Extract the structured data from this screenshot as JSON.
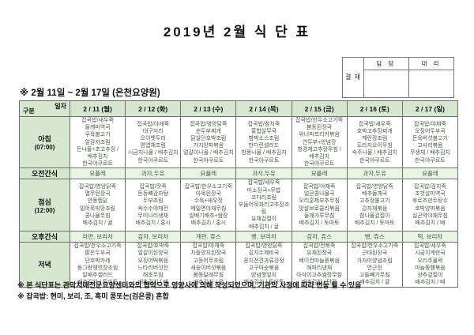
{
  "title": "2019년 2월 식 단 표",
  "approval": {
    "stamp_label": "결 재",
    "col1": "담 당",
    "col2": "대 리"
  },
  "subtitle": "※  2월 11일  ~  2월 17일  (은천요양원)",
  "table": {
    "corner": {
      "top_right": "일자",
      "bottom_left": "구분"
    },
    "days": [
      "2 / 11 (월)",
      "2 / 12 (화)",
      "2 / 13 (수)",
      "2 / 14 (목)",
      "2 / 15 (금)",
      "2 / 16 (토)",
      "2 / 17 (일)"
    ],
    "rows": [
      {
        "label": "아침",
        "time": "(07:00)",
        "cells": [
          [
            "잡곡밥/새우죽",
            "들깨미역국",
            "우육불고기",
            "알감자조림",
            "돈나물+초고추장 /",
            "배추김치",
            "한국야쿠르트"
          ],
          [
            "잡곡밥/야채죽",
            "대구지리",
            "오이뱃두리",
            "명엽채조림",
            "시금치나물 / 배추김치",
            "한국야쿠르트"
          ],
          [
            "잡곡밥/영양닭죽",
            "순두부찌개",
            "닭살단호박조림",
            "가지양파볶음",
            "얼갈이나물 / 배추김치",
            "한국야쿠르트"
          ],
          [
            "잡곡밥/참치죽",
            "홍합살무국",
            "함박소스조림",
            "만다린샐러드",
            "방풍나물 / 배추김치",
            "한국야쿠르트"
          ],
          [
            "잡곡밥/한우소고기죽",
            "봄동된장국",
            "위너파프리카볶음",
            "연두부+양념장",
            "청경채고추장무침 /",
            "배추김치",
            "한국야쿠르트"
          ],
          [
            "잡곡밥/새우죽",
            "호박고추장찌개",
            "계란장조림",
            "도라지오이무침",
            "숙주나물 / 배추김치",
            "한국야쿠르트"
          ],
          [
            "잡곡밥/야채죽",
            "오징어두부국",
            "돈육버섯불고기",
            "고사리볶음",
            "무생채 / 배추김치",
            "한국야쿠르트"
          ]
        ]
      },
      {
        "label": "오전간식",
        "time": "",
        "cells": [
          [
            "요플레"
          ],
          [
            "과자,두유"
          ],
          [
            "요플레"
          ],
          [
            "과자,두유"
          ],
          [
            "요플레"
          ],
          [
            "과자,두유"
          ],
          [
            "요플레"
          ]
        ]
      },
      {
        "label": "점심",
        "time": "(12:00)",
        "cells": [
          [
            "잡곡밥/영양닭죽",
            "열무된장국",
            "안동찜닭",
            "밀어묵피망조림",
            "콩나물무침",
            "배추김치 / 귤"
          ],
          [
            "잡곡밥/잣죽",
            "돈등뼈감자탕",
            "두부조림",
            "옥수수야채전",
            "무미나리생채",
            "배추김치 / 홍시"
          ],
          [
            "잡곡밥/한우소고기죽",
            "아욱된장국",
            "수육+새우젓",
            "메밀면야채무침",
            "알배기배추+쌈장",
            "배추김치 / 홍시"
          ],
          [
            "잡곡밥/새우죽",
            "미소장국+무밥",
            "코다리조림",
            "부들어묵꽈리고추장조림",
            "유채겉절이",
            "배추김치 / 귤"
          ],
          [
            "잡곡밥/야채죽",
            "얼큰콩나물국",
            "오리훈제부추무침",
            "맛살브로콜리볶음",
            "들깨가루무침",
            "배추김치 / 토마토"
          ],
          [
            "잡곡밥/영양닭죽",
            "배추들깨국",
            "고추장불고기",
            "감자채볶음",
            "참나물겉절이",
            "배추김치 / 토마토"
          ],
          [
            "잡곡밥/김치죽",
            "조갯살미역국",
            "후로츠만두탕수",
            "호박양파볶음",
            "실곤약야채무침",
            "배추김치 / 배"
          ]
        ]
      },
      {
        "label": "오후간식",
        "time": "",
        "cells": [
          [
            "라면, 보리차"
          ],
          [
            "감자, 보리차"
          ],
          [
            "계란, 쥬스"
          ],
          [
            "빵, 보리차"
          ],
          [
            "감자, 쥬스"
          ],
          [
            "빵, 쥬스"
          ],
          [
            "떡, 보리차"
          ]
        ]
      },
      {
        "label": "저녁",
        "time": "",
        "cells": [
          [
            "잡곡밥/한우소고기죽",
            "맑은두부국",
            "단호박카레",
            "동그랑땡엿장조림",
            "알배추샐러드",
            "배추김치 / 토마토"
          ],
          [
            "잡곡밥/호박죽",
            "얼갈이된장국",
            "오징어떡볶음",
            "느타리버섯전",
            "해초무침",
            "배추김치 / 배"
          ],
          [
            "잡곡밥/야채죽",
            "차돌양지된장국",
            "고등어무조림",
            "새송이버섯볶음",
            "봄동달래무침",
            "배추김치 / 귤"
          ],
          [
            "잡곡밥/영양닭죽",
            "김치수제비국",
            "꽁치전견과류강정",
            "고구마순볶음",
            "양념깻잎지",
            "배추김치 / 토마토"
          ],
          [
            "잡곡밥/전복죽",
            "유채된장국",
            "베이컨마늘쫑볶음",
            "해파리냉채",
            "아삭이고추쌈장무침",
            "배추김치 / 단감"
          ],
          [
            "잡곡밥/한우소고기죽",
            "근대된장국",
            "가자미양념조림",
            "연근전",
            "고들빼기무침",
            "배추김치 / 귤"
          ],
          [
            "잡곡밥/새우죽",
            "시금치계란국",
            "오리주물럭",
            "마늘쫑햄볶음",
            "상추겉절이",
            "배추김치 / 배"
          ]
        ]
      }
    ]
  },
  "notes": [
    "※ 본 식단표는 관악치매전문요양센터와의  협약으로  영양사에  의해  작성되었으며, 기관의  사정에  따라  변동 될 수  있음",
    "※ 잡곡밥: 현미, 보리, 조, 흑미 콩또는(검은콩) 혼합"
  ],
  "colors": {
    "header_green": "#d5e8cf",
    "snack_green": "#e9f4e2",
    "menu_text": "#4c584a"
  }
}
